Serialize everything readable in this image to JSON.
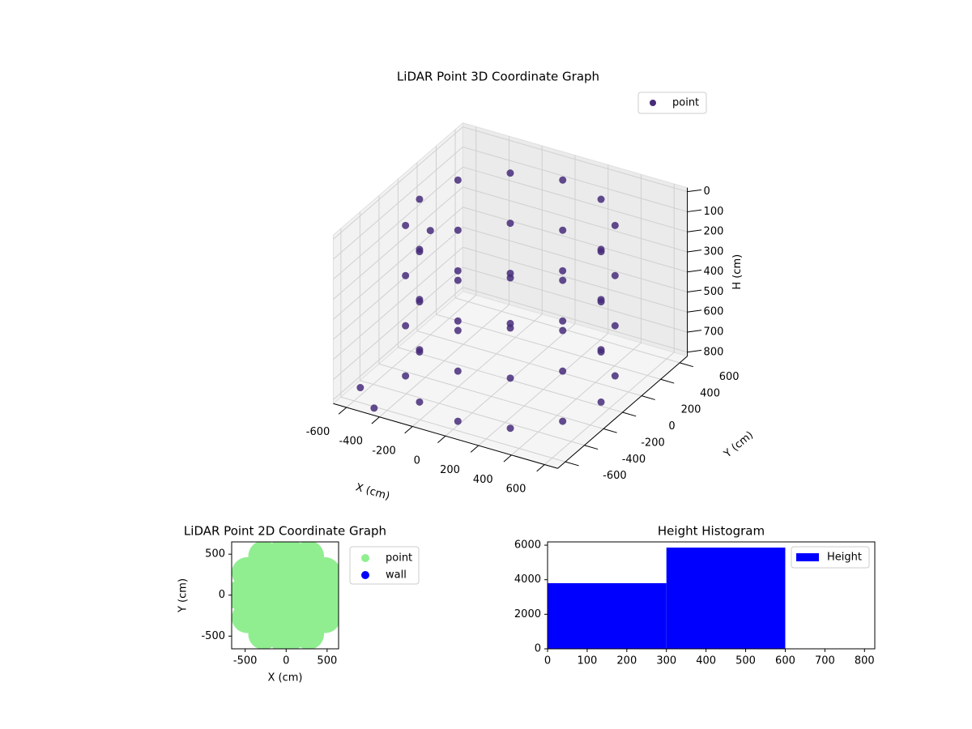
{
  "chart_data": [
    {
      "type": "scatter3d",
      "title": "LiDAR Point 3D Coordinate Graph",
      "xlabel": "X (cm)",
      "ylabel": "Y (cm)",
      "zlabel": "H (cm)",
      "xlim": [
        -680,
        680
      ],
      "ylim": [
        -680,
        680
      ],
      "zlim": [
        820,
        -20
      ],
      "xticks": [
        -600,
        -400,
        -200,
        0,
        200,
        400,
        600
      ],
      "yticks": [
        -600,
        -400,
        -200,
        0,
        200,
        400,
        600
      ],
      "zticks": [
        0,
        100,
        200,
        300,
        400,
        500,
        600,
        700,
        800
      ],
      "legend": "upper right",
      "series": [
        {
          "name": "point",
          "color": "#472c7a",
          "x": [
            550,
            476,
            275,
            0,
            -275,
            -476,
            -550,
            -476,
            -275,
            0,
            275,
            476,
            550,
            476,
            275,
            0,
            -275,
            -476,
            -550,
            -476,
            -275,
            0,
            275,
            476,
            550,
            476,
            275,
            0,
            -275,
            -476,
            -550,
            -476,
            -275,
            0,
            275,
            476,
            550,
            476,
            275,
            0,
            -275,
            -476,
            -550,
            -476,
            -275,
            0,
            275,
            476,
            -620,
            -600,
            -450
          ],
          "y": [
            0,
            275,
            476,
            550,
            476,
            275,
            0,
            -275,
            -476,
            -550,
            -476,
            -275,
            0,
            275,
            476,
            550,
            476,
            275,
            0,
            -275,
            -476,
            -550,
            -476,
            -275,
            0,
            275,
            476,
            550,
            476,
            275,
            0,
            -275,
            -476,
            -550,
            -476,
            -275,
            0,
            275,
            476,
            550,
            476,
            275,
            0,
            -275,
            -476,
            -550,
            -476,
            -275,
            -500,
            200,
            -650
          ],
          "z": [
            50,
            50,
            50,
            50,
            50,
            50,
            50,
            50,
            50,
            50,
            50,
            50,
            300,
            300,
            300,
            300,
            300,
            300,
            300,
            300,
            300,
            300,
            300,
            300,
            550,
            550,
            550,
            550,
            550,
            550,
            550,
            550,
            550,
            550,
            550,
            550,
            800,
            800,
            800,
            800,
            800,
            800,
            800,
            800,
            800,
            800,
            800,
            800,
            800,
            300,
            800
          ]
        }
      ]
    },
    {
      "type": "scatter",
      "title": "LiDAR Point 2D Coordinate Graph",
      "xlabel": "X (cm)",
      "ylabel": "Y (cm)",
      "xlim": [
        -665,
        640
      ],
      "ylim": [
        -655,
        650
      ],
      "xticks": [
        -500,
        0,
        500
      ],
      "yticks": [
        -500,
        0,
        500
      ],
      "legend": "outside right",
      "series": [
        {
          "name": "point",
          "color": "#90ee90",
          "x": [
            550,
            476,
            275,
            0,
            -275,
            -476,
            -550,
            -476,
            -275,
            0,
            275,
            476,
            300,
            260,
            150,
            0,
            -150,
            -260,
            -300,
            -260,
            -150,
            0,
            150,
            260,
            0
          ],
          "y": [
            0,
            275,
            476,
            550,
            476,
            275,
            0,
            -275,
            -476,
            -550,
            -476,
            -275,
            0,
            150,
            260,
            300,
            260,
            150,
            0,
            -150,
            -260,
            -300,
            -260,
            -150,
            0
          ]
        },
        {
          "name": "wall",
          "color": "#0000ff",
          "x": [],
          "y": []
        }
      ]
    },
    {
      "type": "histogram",
      "title": "Height Histogram",
      "xlim": [
        0,
        826
      ],
      "ylim": [
        0,
        6190
      ],
      "xticks": [
        0,
        100,
        200,
        300,
        400,
        500,
        600,
        700,
        800
      ],
      "yticks": [
        0,
        2000,
        4000,
        6000
      ],
      "legend": "upper right",
      "series": [
        {
          "name": "Height",
          "color": "#0000ff",
          "bins": [
            0,
            300,
            600
          ],
          "values": [
            3800,
            5860
          ]
        }
      ]
    }
  ]
}
